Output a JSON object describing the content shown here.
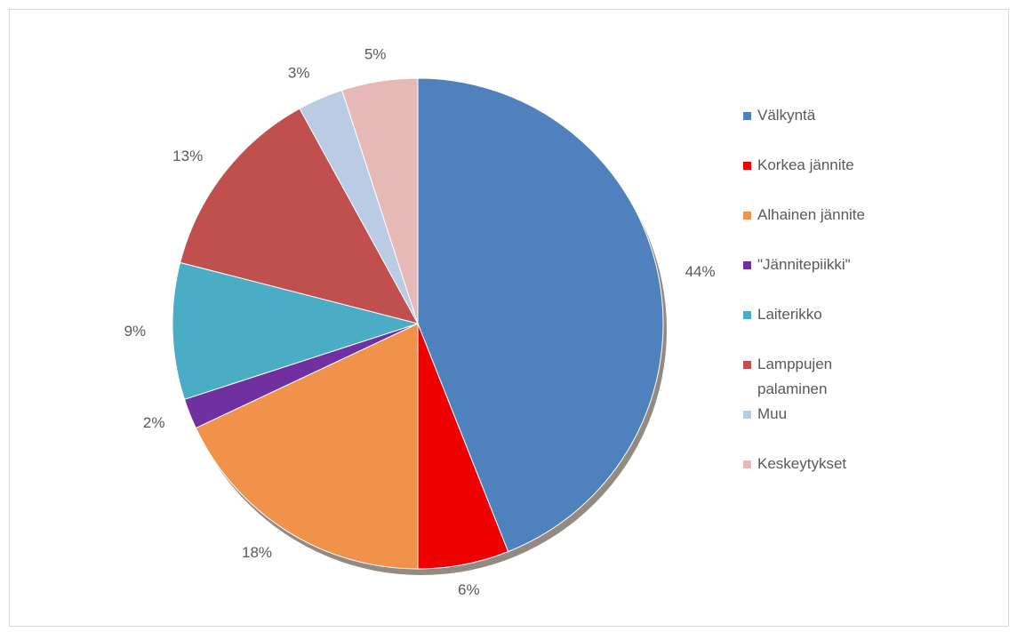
{
  "chart_data": {
    "type": "pie",
    "categories": [
      "Välkyntä",
      "Korkea jännite",
      "Alhainen jännite",
      "\"Jännitepiikki\"",
      "Laiterikko",
      "Lamppujen palaminen",
      "Muu",
      "Keskeytykset"
    ],
    "values": [
      44,
      6,
      18,
      2,
      9,
      13,
      3,
      5
    ],
    "value_labels": [
      "44%",
      "6%",
      "18%",
      "2%",
      "9%",
      "13%",
      "3%",
      "5%"
    ],
    "colors": [
      "#4f81bd",
      "#ee0000",
      "#f0924a",
      "#7030a0",
      "#4bacc6",
      "#c0504d",
      "#b9cce4",
      "#e6b9b8"
    ],
    "legend": "right"
  }
}
